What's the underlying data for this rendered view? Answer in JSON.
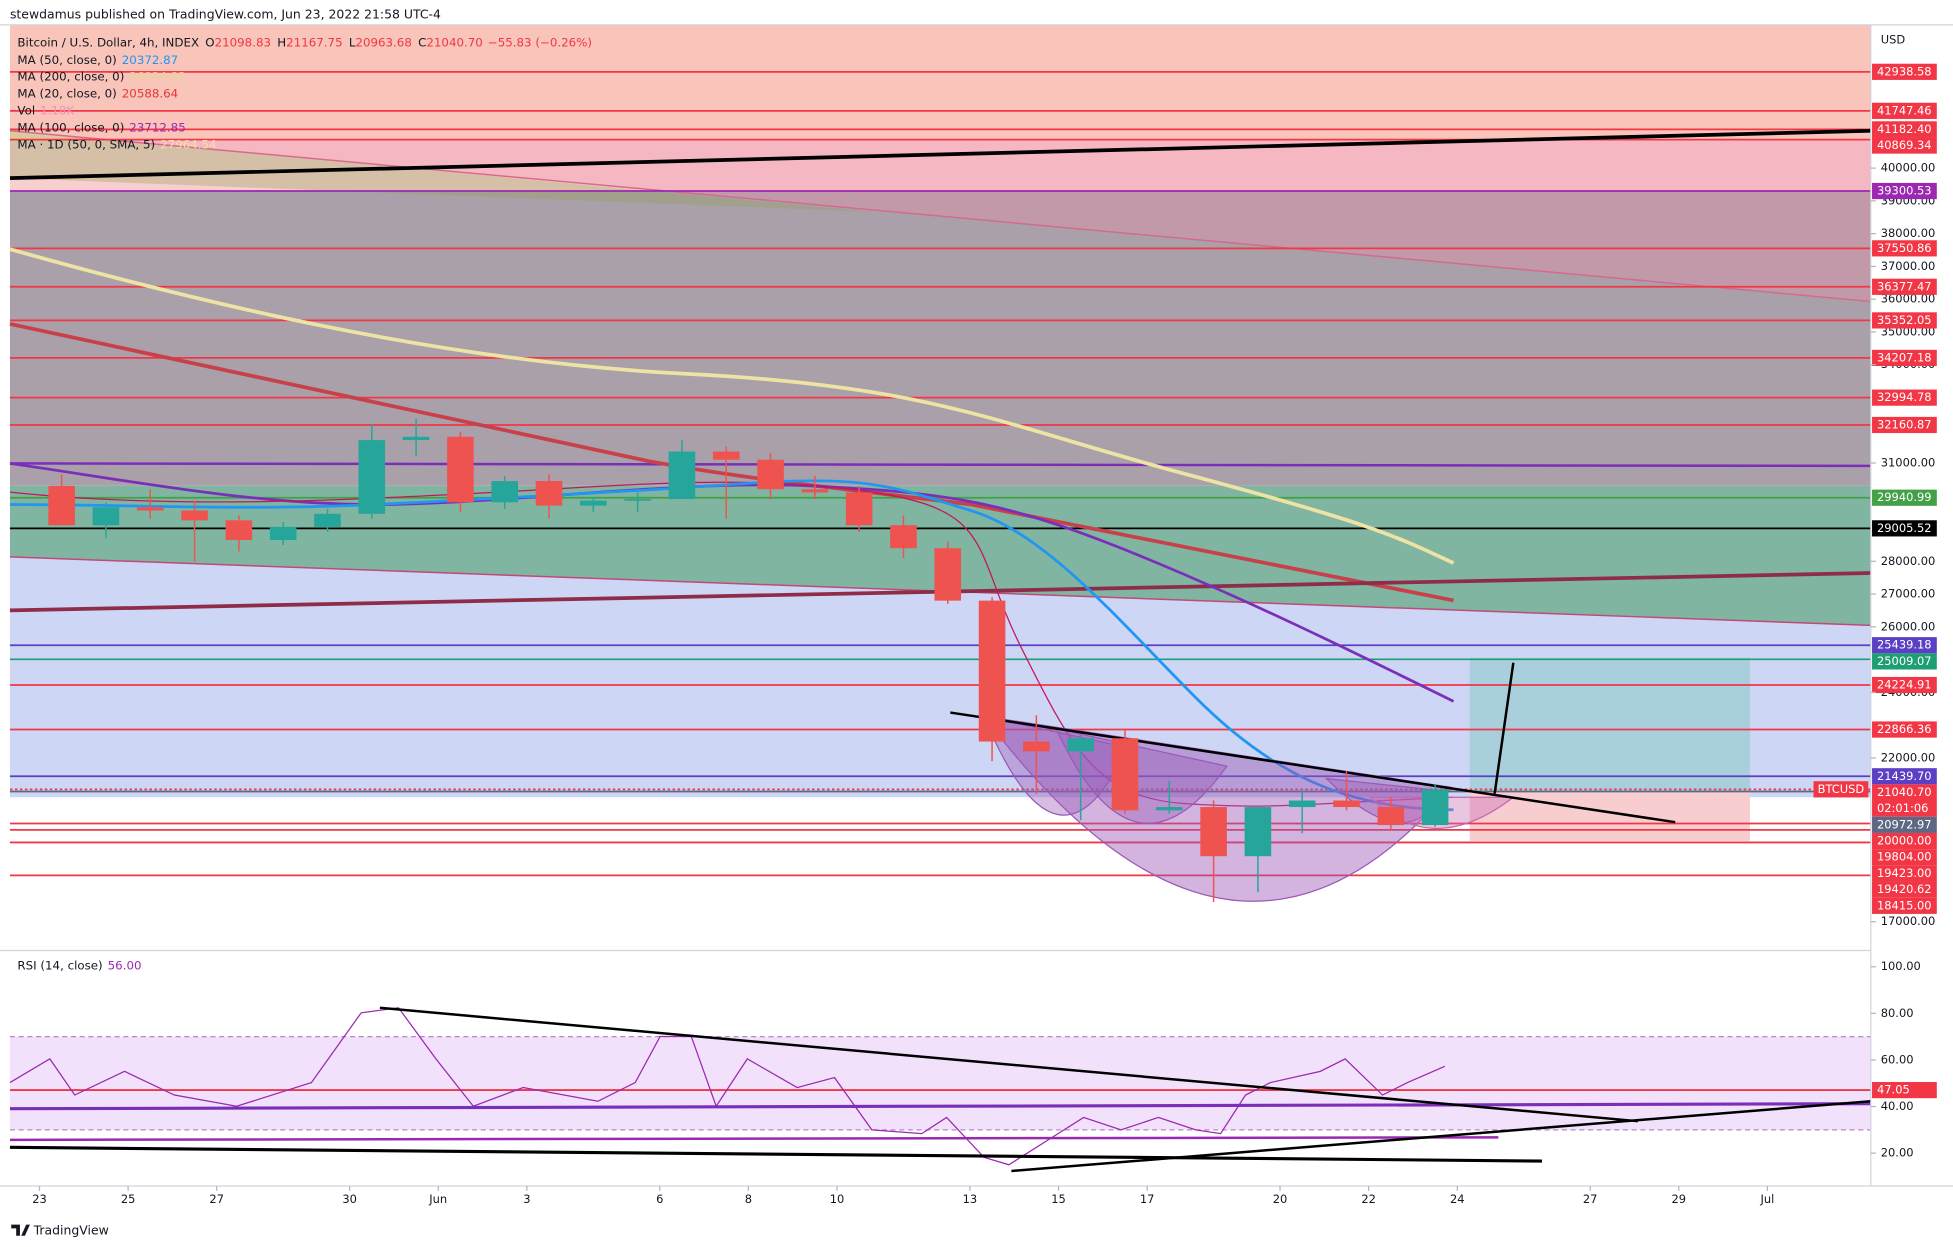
{
  "header": {
    "publisher": "stewdamus published on TradingView.com, Jun 23, 2022 21:58 UTC-4",
    "currency": "USD",
    "brand": "TradingView"
  },
  "legend": {
    "symbol": "Bitcoin / U.S. Dollar, 4h, INDEX",
    "color": "#f23645",
    "ohlc": [
      {
        "key": "O",
        "value": "21098.83"
      },
      {
        "key": "H",
        "value": "21167.75"
      },
      {
        "key": "L",
        "value": "20963.68"
      },
      {
        "key": "C",
        "value": "21040.70"
      }
    ],
    "change": "−55.83 (−0.26%)",
    "studies": [
      {
        "name": "MA (50, close, 0)",
        "value": "20372.87",
        "color": "#2196f3"
      },
      {
        "name": "MA (200, close, 0)",
        "value": "26824.82",
        "color": "#e6d49a"
      },
      {
        "name": "MA (20, close, 0)",
        "value": "20588.64",
        "color": "#e53935"
      },
      {
        "name": "Vol",
        "value": "1.18K",
        "color": "#f48fb1"
      },
      {
        "name": "MA (100, close, 0)",
        "value": "23712.85",
        "color": "#9c27b0"
      },
      {
        "name": "MA · 1D (50, 0, SMA, 5)",
        "value": "27964.54",
        "color": "#efe0a8"
      }
    ]
  },
  "chart_data": {
    "type": "candlestick",
    "x": [
      "2022-05-23",
      "2022-05-24",
      "2022-05-25",
      "2022-05-26",
      "2022-05-27",
      "2022-05-28",
      "2022-05-29",
      "2022-05-30",
      "2022-05-31",
      "2022-06-01",
      "2022-06-02",
      "2022-06-03",
      "2022-06-04",
      "2022-06-05",
      "2022-06-06",
      "2022-06-07",
      "2022-06-08",
      "2022-06-09",
      "2022-06-10",
      "2022-06-11",
      "2022-06-12",
      "2022-06-13",
      "2022-06-14",
      "2022-06-15",
      "2022-06-16",
      "2022-06-17",
      "2022-06-18",
      "2022-06-19",
      "2022-06-20",
      "2022-06-21",
      "2022-06-22",
      "2022-06-23"
    ],
    "open": [
      30300,
      29100,
      29650,
      29550,
      29250,
      28650,
      29050,
      29450,
      31700,
      31800,
      29800,
      30450,
      29700,
      29850,
      29900,
      31350,
      31100,
      30200,
      30100,
      29100,
      28400,
      26800,
      22500,
      22200,
      22600,
      20400,
      20500,
      19000,
      20500,
      20700,
      20500,
      19950
    ],
    "high": [
      30650,
      29800,
      30200,
      29850,
      29400,
      29200,
      29600,
      32200,
      32350,
      31950,
      30600,
      30650,
      29950,
      30100,
      31700,
      31500,
      31300,
      30600,
      30300,
      29400,
      28600,
      26900,
      23300,
      22700,
      22900,
      21300,
      20700,
      20500,
      21000,
      21600,
      20800,
      21200
    ],
    "low": [
      29300,
      28700,
      29300,
      28000,
      28300,
      28500,
      28900,
      29300,
      31200,
      29500,
      29600,
      29300,
      29500,
      29500,
      29900,
      29300,
      29900,
      29900,
      28900,
      28100,
      26700,
      21900,
      20900,
      20100,
      20300,
      20300,
      17600,
      17900,
      19700,
      20400,
      19800,
      19900
    ],
    "close": [
      29100,
      29650,
      29550,
      29250,
      28650,
      29050,
      29450,
      31700,
      31800,
      29800,
      30450,
      29700,
      29850,
      29900,
      31350,
      31100,
      30200,
      30100,
      29100,
      28400,
      26800,
      22500,
      22200,
      22600,
      20400,
      20500,
      19000,
      20500,
      20700,
      20500,
      19950,
      21040.7
    ],
    "up_color": "#26a69a",
    "down_color": "#ef5350",
    "xlim": [
      "2022-05-22T08:00:00Z",
      "2022-07-03T08:00:00Z"
    ],
    "xticks": [
      {
        "value": "2022-05-23",
        "label": "23"
      },
      {
        "value": "2022-05-25",
        "label": "25"
      },
      {
        "value": "2022-05-27",
        "label": "27"
      },
      {
        "value": "2022-05-30",
        "label": "30"
      },
      {
        "value": "2022-06-01",
        "label": "Jun"
      },
      {
        "value": "2022-06-03",
        "label": "3"
      },
      {
        "value": "2022-06-06",
        "label": "6"
      },
      {
        "value": "2022-06-08",
        "label": "8"
      },
      {
        "value": "2022-06-10",
        "label": "10"
      },
      {
        "value": "2022-06-13",
        "label": "13"
      },
      {
        "value": "2022-06-15",
        "label": "15"
      },
      {
        "value": "2022-06-17",
        "label": "17"
      },
      {
        "value": "2022-06-20",
        "label": "20"
      },
      {
        "value": "2022-06-22",
        "label": "22"
      },
      {
        "value": "2022-06-24",
        "label": "24"
      },
      {
        "value": "2022-06-27",
        "label": "27"
      },
      {
        "value": "2022-06-29",
        "label": "29"
      },
      {
        "value": "2022-07-01",
        "label": "Jul"
      }
    ],
    "ylim": [
      16160,
      44370
    ],
    "yticks": [
      {
        "value": 40000,
        "label": "40000.00"
      },
      {
        "value": 39000,
        "label": "39000.00"
      },
      {
        "value": 38000,
        "label": "38000.00"
      },
      {
        "value": 37000,
        "label": "37000.00"
      },
      {
        "value": 36000,
        "label": "36000.00"
      },
      {
        "value": 35000,
        "label": "35000.00"
      },
      {
        "value": 34000,
        "label": "34000.00"
      },
      {
        "value": 31000,
        "label": "31000.00"
      },
      {
        "value": 28000,
        "label": "28000.00"
      },
      {
        "value": 27000,
        "label": "27000.00"
      },
      {
        "value": 26000,
        "label": "26000.00"
      },
      {
        "value": 24000,
        "label": "24000.00"
      },
      {
        "value": 22000,
        "label": "22000.00"
      },
      {
        "value": 17000,
        "label": "17000.00"
      }
    ],
    "levels": [
      {
        "price": 42938.58,
        "color": "#f23645"
      },
      {
        "price": 41747.46,
        "color": "#f23645"
      },
      {
        "price": {
          "value": 41182.4,
          "label": "41182.40"
        },
        "color": "#f23645"
      },
      {
        "price": 40869.34,
        "color": "#f23645"
      },
      {
        "price": 39300.53,
        "color": "#9c27b0"
      },
      {
        "price": 37550.86,
        "color": "#f23645"
      },
      {
        "price": 36377.47,
        "color": "#f23645"
      },
      {
        "price": 35352.05,
        "color": "#f23645"
      },
      {
        "price": 34207.18,
        "color": "#f23645"
      },
      {
        "price": 32994.78,
        "color": "#f23645"
      },
      {
        "price": 32160.87,
        "color": "#f23645"
      },
      {
        "price": 29940.99,
        "color": "#43a047"
      },
      {
        "price": 29005.52,
        "color": "#000000"
      },
      {
        "price": 25439.18,
        "color": "#5b3fc4"
      },
      {
        "price": 25009.07,
        "color": "#1e9e74"
      },
      {
        "price": 24224.91,
        "color": "#f23645"
      },
      {
        "price": 22866.36,
        "color": "#f23645"
      },
      {
        "price": {
          "value": 21439.7,
          "label": "21439.70"
        },
        "color": "#5b3fc4"
      },
      {
        "name": "BTCUSD",
        "price": {
          "value": 21040.7,
          "label": "21040.70"
        },
        "countdown": "02:01:06",
        "color": "#f23645"
      },
      {
        "price": 20972.97,
        "color": "#5d6885"
      },
      {
        "price": {
          "value": 20000,
          "label": "20000.00"
        },
        "color": "#f23645"
      },
      {
        "price": {
          "value": 19804,
          "label": "19804.00"
        },
        "color": "#f23645"
      },
      {
        "price": {
          "value": 19423,
          "label": "19423.00"
        },
        "color": "#f23645"
      },
      {
        "price": 19420.62,
        "color": "#f23645"
      },
      {
        "price": {
          "value": 18415,
          "label": "18415.00"
        },
        "color": "#f23645"
      }
    ]
  },
  "rsi": {
    "title": "RSI (14, close)",
    "value": "56.00",
    "color": "#9c27b0",
    "ylim": [
      5.9,
      105.9
    ],
    "yticks": [
      {
        "value": 20,
        "label": "20.00"
      },
      {
        "value": 40,
        "label": "40.00"
      },
      {
        "value": 60,
        "label": "60.00"
      },
      {
        "value": 80,
        "label": "80.00"
      },
      {
        "value": 100,
        "label": "100.00"
      }
    ],
    "band": [
      30,
      70
    ],
    "level": 47.05,
    "level_color": "#f23645"
  }
}
